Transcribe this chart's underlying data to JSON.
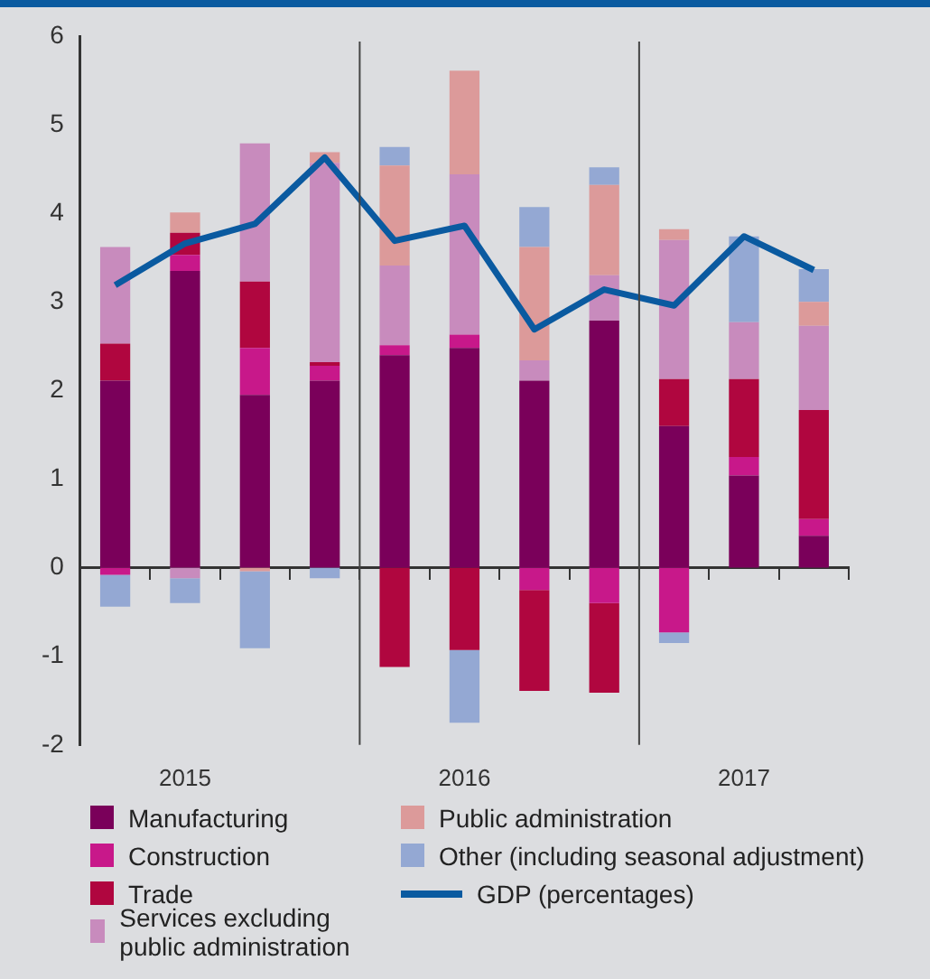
{
  "chart_data": {
    "type": "bar",
    "stacked": true,
    "categories": [
      null,
      "2015",
      null,
      null,
      null,
      "2016",
      null,
      null,
      null,
      "2017",
      null
    ],
    "ylim": [
      -2,
      6
    ],
    "yticks": [
      -2,
      -1,
      0,
      1,
      2,
      3,
      4,
      5,
      6
    ],
    "grid": false,
    "legend": "bottom",
    "series": [
      {
        "name": "Manufacturing",
        "color": "#7a005a",
        "values": [
          2.11,
          3.35,
          1.95,
          2.11,
          2.4,
          2.48,
          2.11,
          2.79,
          1.6,
          1.04,
          0.36
        ]
      },
      {
        "name": "Construction",
        "color": "#c8188a",
        "values": [
          -0.08,
          0.18,
          0.53,
          0.17,
          0.11,
          0.15,
          -0.25,
          -0.4,
          -0.73,
          0.21,
          0.19
        ]
      },
      {
        "name": "Trade",
        "color": "#b0063f",
        "values": [
          0.42,
          0.25,
          0.75,
          0.04,
          -1.12,
          -0.93,
          -1.14,
          -1.01,
          0.53,
          0.88,
          1.23
        ]
      },
      {
        "name": "Services excluding public administration",
        "color": "#c88bbd",
        "values": [
          1.09,
          -0.12,
          1.56,
          2.25,
          0.9,
          1.81,
          0.23,
          0.51,
          1.57,
          0.64,
          0.95
        ]
      },
      {
        "name": "Public administration",
        "color": "#dc9a9a",
        "values": [
          null,
          0.23,
          -0.04,
          0.12,
          1.13,
          1.17,
          1.28,
          1.02,
          0.12,
          null,
          0.27
        ]
      },
      {
        "name": "Other (including seasonal adjustment)",
        "color": "#94a8d3",
        "values": [
          -0.36,
          -0.28,
          -0.87,
          -0.12,
          0.21,
          -0.82,
          0.45,
          0.2,
          -0.12,
          0.97,
          0.37
        ]
      },
      {
        "name": "GDP (percentages)",
        "type": "line",
        "color": "#0a5aa0",
        "values": [
          3.19,
          3.66,
          3.88,
          4.63,
          3.69,
          3.86,
          2.69,
          3.14,
          2.96,
          3.74,
          3.36
        ]
      }
    ]
  }
}
